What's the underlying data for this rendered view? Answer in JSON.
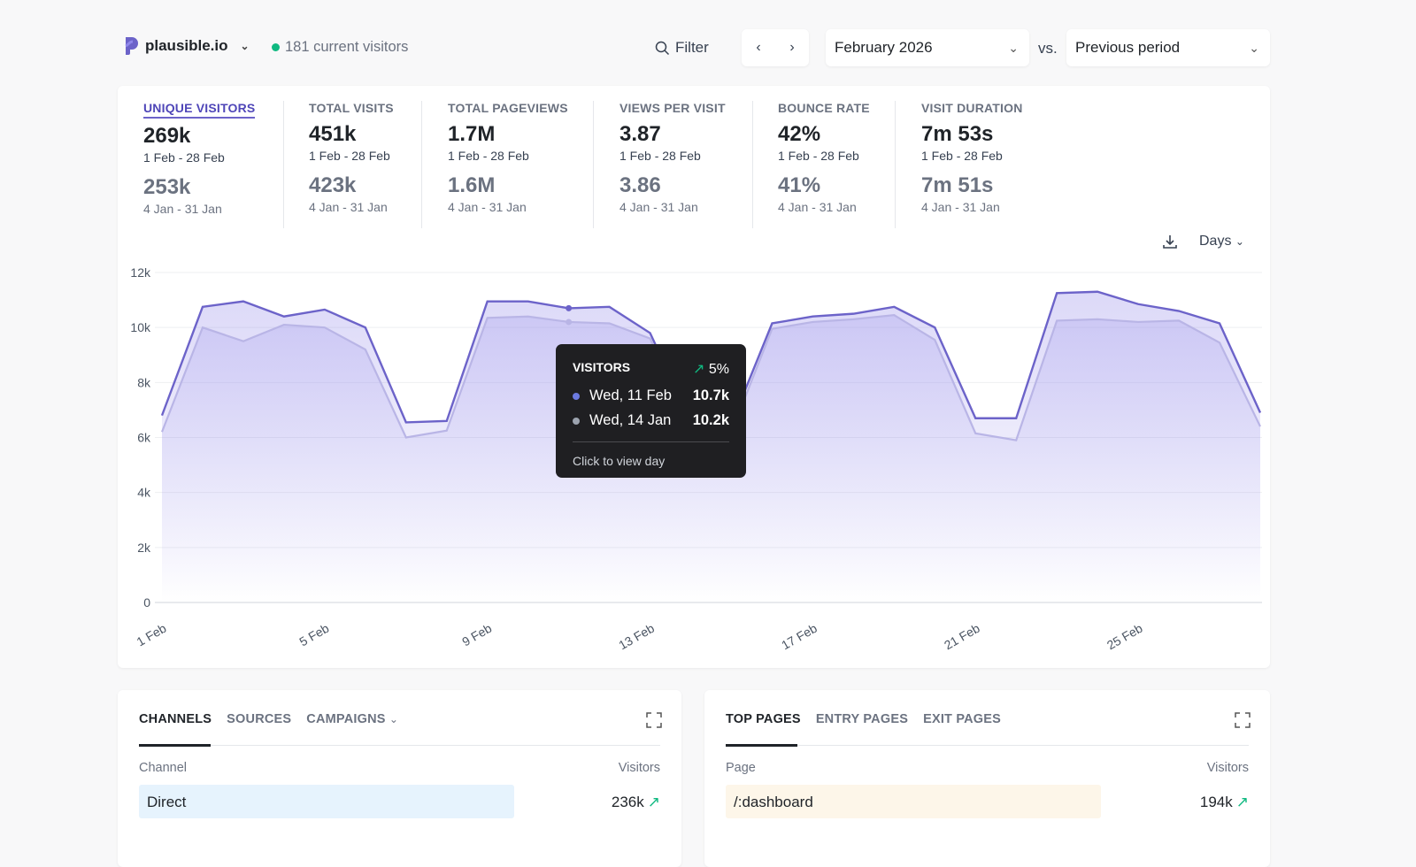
{
  "header": {
    "site": "plausible.io",
    "live_count": "181 current visitors",
    "filter_label": "Filter",
    "period": "February 2026",
    "vs": "vs.",
    "comparison": "Previous period"
  },
  "colors": {
    "accent": "#6c63c9",
    "prev": "#b9b5e6",
    "live": "#10b981"
  },
  "stats": [
    {
      "label": "UNIQUE VISITORS",
      "value": "269k",
      "range": "1 Feb - 28 Feb",
      "prev_value": "253k",
      "prev_range": "4 Jan - 31 Jan",
      "active": true
    },
    {
      "label": "TOTAL VISITS",
      "value": "451k",
      "range": "1 Feb - 28 Feb",
      "prev_value": "423k",
      "prev_range": "4 Jan - 31 Jan"
    },
    {
      "label": "TOTAL PAGEVIEWS",
      "value": "1.7M",
      "range": "1 Feb - 28 Feb",
      "prev_value": "1.6M",
      "prev_range": "4 Jan - 31 Jan"
    },
    {
      "label": "VIEWS PER VISIT",
      "value": "3.87",
      "range": "1 Feb - 28 Feb",
      "prev_value": "3.86",
      "prev_range": "4 Jan - 31 Jan"
    },
    {
      "label": "BOUNCE RATE",
      "value": "42%",
      "range": "1 Feb - 28 Feb",
      "prev_value": "41%",
      "prev_range": "4 Jan - 31 Jan"
    },
    {
      "label": "VISIT DURATION",
      "value": "7m 53s",
      "range": "1 Feb - 28 Feb",
      "prev_value": "7m 51s",
      "prev_range": "4 Jan - 31 Jan"
    }
  ],
  "interval": "Days",
  "chart_data": {
    "type": "area",
    "x_tick_labels": [
      "1 Feb",
      "5 Feb",
      "9 Feb",
      "13 Feb",
      "17 Feb",
      "21 Feb",
      "25 Feb"
    ],
    "y_ticks": [
      "0",
      "2k",
      "4k",
      "6k",
      "8k",
      "10k",
      "12k"
    ],
    "ylim": [
      0,
      12000
    ],
    "grid": true,
    "x": [
      "1 Feb",
      "2 Feb",
      "3 Feb",
      "4 Feb",
      "5 Feb",
      "6 Feb",
      "7 Feb",
      "8 Feb",
      "9 Feb",
      "10 Feb",
      "11 Feb",
      "12 Feb",
      "13 Feb",
      "14 Feb",
      "15 Feb",
      "16 Feb",
      "17 Feb",
      "18 Feb",
      "19 Feb",
      "20 Feb",
      "21 Feb",
      "22 Feb",
      "23 Feb",
      "24 Feb",
      "25 Feb",
      "26 Feb",
      "27 Feb",
      "28 Feb"
    ],
    "series": [
      {
        "values": [
          6800,
          10750,
          10950,
          10400,
          10650,
          10000,
          6550,
          6600,
          10950,
          10950,
          10700,
          10750,
          9800,
          6600,
          6500,
          10150,
          10400,
          10500,
          10750,
          10000,
          6700,
          6700,
          11250,
          11300,
          10850,
          10600,
          10150,
          6900
        ]
      },
      {
        "values": [
          6200,
          10000,
          9500,
          10100,
          10000,
          9200,
          6000,
          6250,
          10350,
          10400,
          10200,
          10150,
          9600,
          6400,
          6200,
          9950,
          10200,
          10300,
          10450,
          9550,
          6150,
          5900,
          10250,
          10300,
          10200,
          10250,
          9450,
          6400
        ]
      }
    ],
    "tooltip": {
      "title": "VISITORS",
      "change": "5%",
      "rows": [
        {
          "label": "Wed, 11 Feb",
          "value": "10.7k"
        },
        {
          "label": "Wed, 14 Jan",
          "value": "10.2k"
        }
      ],
      "footer": "Click to view day",
      "hover_index": 10
    }
  },
  "sources_panel": {
    "tabs": [
      "CHANNELS",
      "SOURCES",
      "CAMPAIGNS"
    ],
    "col_left": "Channel",
    "col_right": "Visitors",
    "rows": [
      {
        "name": "Direct",
        "value": "236k",
        "bar": 0.72
      }
    ]
  },
  "pages_panel": {
    "tabs": [
      "TOP PAGES",
      "ENTRY PAGES",
      "EXIT PAGES"
    ],
    "col_left": "Page",
    "col_right": "Visitors",
    "rows": [
      {
        "name": "/:dashboard",
        "value": "194k",
        "bar": 0.72
      }
    ]
  }
}
